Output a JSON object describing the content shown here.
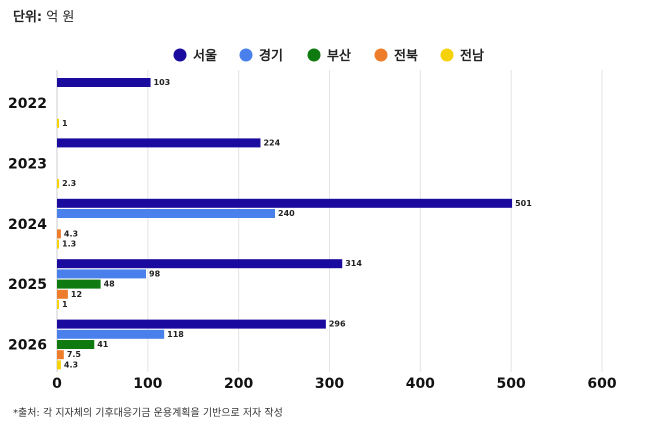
{
  "unit": {
    "label": "단위:",
    "value": "억 원"
  },
  "source": "*출처: 각 지자체의 기후대응기금 운용계획을 기반으로 저자 작성",
  "chart_data": {
    "type": "bar",
    "orientation": "horizontal",
    "categories": [
      "2022",
      "2023",
      "2024",
      "2025",
      "2026"
    ],
    "series": [
      {
        "name": "서울",
        "color": "#1a0a9e",
        "values": [
          103,
          224,
          501,
          314,
          296
        ]
      },
      {
        "name": "경기",
        "color": "#4a80ec",
        "values": [
          null,
          null,
          240,
          98,
          118
        ]
      },
      {
        "name": "부산",
        "color": "#0f7a0f",
        "values": [
          null,
          null,
          null,
          48,
          41
        ]
      },
      {
        "name": "전북",
        "color": "#ee7d2b",
        "values": [
          null,
          null,
          4.3,
          12,
          7.5
        ]
      },
      {
        "name": "전남",
        "color": "#f5d20a",
        "values": [
          1,
          2.3,
          1.3,
          1,
          4.3
        ]
      }
    ],
    "xlim": [
      0,
      600
    ],
    "xticks": [
      0,
      100,
      200,
      300,
      400,
      500,
      600
    ],
    "grid": true,
    "legend": "top-center"
  }
}
